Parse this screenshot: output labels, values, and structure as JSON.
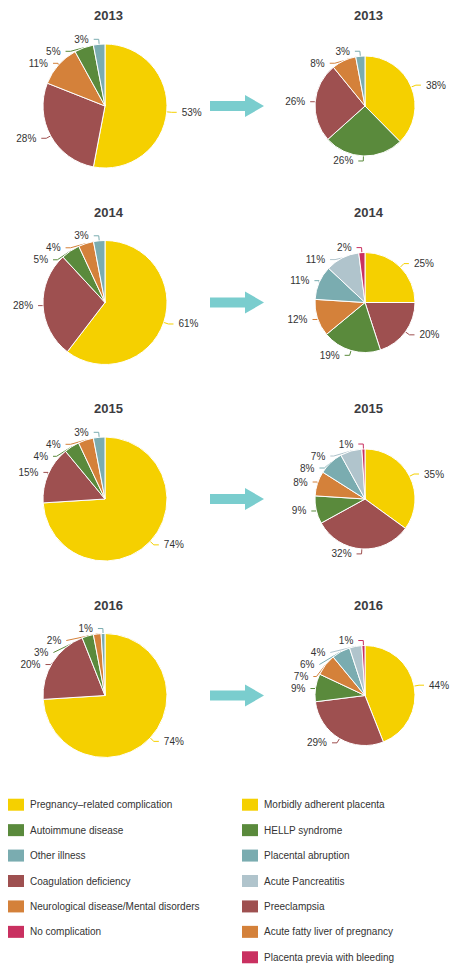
{
  "chart_data": [
    {
      "type": "pie",
      "title": "2013",
      "values": [
        53,
        28,
        11,
        5,
        3
      ],
      "value_labels": [
        "53%",
        "28%",
        "11%",
        "5%",
        "3%"
      ],
      "colors": [
        "#F5D000",
        "#9E5050",
        "#D4813A",
        "#5A8A3C",
        "#7AACB0"
      ],
      "data_labels": true
    },
    {
      "type": "pie",
      "title": "2014",
      "values": [
        61,
        28,
        5,
        4,
        3
      ],
      "value_labels": [
        "61%",
        "28%",
        "5%",
        "4%",
        "3%"
      ],
      "colors": [
        "#F5D000",
        "#9E5050",
        "#5A8A3C",
        "#D4813A",
        "#7AACB0"
      ],
      "data_labels": true
    },
    {
      "type": "pie",
      "title": "2015",
      "values": [
        74,
        15,
        4,
        4,
        3
      ],
      "value_labels": [
        "74%",
        "15%",
        "4%",
        "4%",
        "3%"
      ],
      "colors": [
        "#F5D000",
        "#9E5050",
        "#5A8A3C",
        "#D4813A",
        "#7AACB0"
      ],
      "data_labels": true
    },
    {
      "type": "pie",
      "title": "2016",
      "values": [
        74,
        20,
        3,
        2,
        1
      ],
      "value_labels": [
        "74%",
        "20%",
        "3%",
        "2%",
        "1%"
      ],
      "colors": [
        "#F5D000",
        "#9E5050",
        "#5A8A3C",
        "#D4813A",
        "#7AACB0"
      ],
      "data_labels": true
    },
    {
      "type": "pie",
      "title": "2013",
      "values": [
        38,
        26,
        26,
        8,
        3
      ],
      "value_labels": [
        "38%",
        "26%",
        "26%",
        "8%",
        "3%"
      ],
      "colors": [
        "#F5D000",
        "#5A8A3C",
        "#9E5050",
        "#D4813A",
        "#7AACB0"
      ],
      "data_labels": true
    },
    {
      "type": "pie",
      "title": "2014",
      "values": [
        25,
        20,
        19,
        12,
        11,
        11,
        2
      ],
      "value_labels": [
        "25%",
        "20%",
        "19%",
        "12%",
        "11%",
        "11%",
        "2%"
      ],
      "colors": [
        "#F5D000",
        "#9E5050",
        "#5A8A3C",
        "#D4813A",
        "#7AACB0",
        "#B0C4CC",
        "#C93060"
      ],
      "data_labels": true
    },
    {
      "type": "pie",
      "title": "2015",
      "values": [
        35,
        32,
        9,
        8,
        8,
        7,
        1
      ],
      "value_labels": [
        "35%",
        "32%",
        "9%",
        "8%",
        "8%",
        "7%",
        "1%"
      ],
      "colors": [
        "#F5D000",
        "#9E5050",
        "#5A8A3C",
        "#D4813A",
        "#7AACB0",
        "#B0C4CC",
        "#C93060"
      ],
      "data_labels": true
    },
    {
      "type": "pie",
      "title": "2016",
      "values": [
        44,
        29,
        9,
        7,
        6,
        4,
        1
      ],
      "value_labels": [
        "44%",
        "29%",
        "9%",
        "7%",
        "6%",
        "4%",
        "1%"
      ],
      "colors": [
        "#F5D000",
        "#9E5050",
        "#5A8A3C",
        "#D4813A",
        "#7AACB0",
        "#B0C4CC",
        "#C93060"
      ],
      "data_labels": true
    },
    {
      "type": "arrow",
      "color": "#7ACDCE"
    },
    {
      "type": "legend",
      "series": [
        {
          "name": "Pregnancy–related complication",
          "color": "#F5D000"
        },
        {
          "name": "Autoimmune disease",
          "color": "#5A8A3C"
        },
        {
          "name": "Other illness",
          "color": "#7AACB0"
        },
        {
          "name": "Coagulation deficiency",
          "color": "#9E5050"
        },
        {
          "name": "Neurological disease/Mental disorders",
          "color": "#D4813A"
        },
        {
          "name": "No complication",
          "color": "#C93060"
        }
      ]
    },
    {
      "type": "legend",
      "series": [
        {
          "name": "Morbidly adherent placenta",
          "color": "#F5D000"
        },
        {
          "name": "HELLP syndrome",
          "color": "#5A8A3C"
        },
        {
          "name": "Placental abruption",
          "color": "#7AACB0"
        },
        {
          "name": "Acute Pancreatitis",
          "color": "#B0C4CC"
        },
        {
          "name": "Preeclampsia",
          "color": "#9E5050"
        },
        {
          "name": "Acute fatty liver of pregnancy",
          "color": "#D4813A"
        },
        {
          "name": "Placenta previa with bleeding",
          "color": "#C93060"
        }
      ]
    }
  ]
}
